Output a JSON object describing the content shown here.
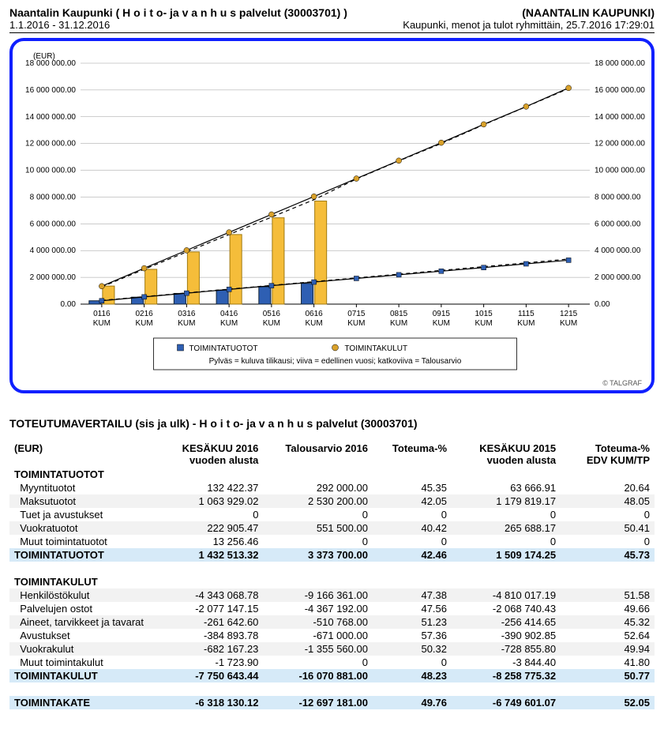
{
  "header": {
    "left": "Naantalin Kaupunki ( H o i t o- ja v a n h u s palvelut (30003701) )",
    "right": "(NAANTALIN KAUPUNKI)",
    "left2": "1.1.2016 - 31.12.2016",
    "right2": "Kaupunki, menot ja tulot ryhmittäin, 25.7.2016 17:29:01"
  },
  "chart": {
    "y_unit": "(EUR)",
    "ylim": [
      0,
      18000000
    ],
    "ytick_step": 2000000,
    "xlabels": [
      "0116",
      "0216",
      "0316",
      "0416",
      "0516",
      "0616",
      "0715",
      "0815",
      "0915",
      "1015",
      "1115",
      "1215"
    ],
    "xsub": "KUM",
    "bar_color_tuotot": "#2e5fb3",
    "bar_color_kulut": "#f5bd3a",
    "marker_tuotot": "#2e5fb3",
    "marker_kulut": "#d9a12a",
    "grid_color": "#808080",
    "border_color": "#1020ff",
    "tuotot_bars": [
      250000,
      520000,
      800000,
      1050000,
      1300000,
      1550000,
      0,
      0,
      0,
      0,
      0,
      0
    ],
    "kulut_bars": [
      1350000,
      2600000,
      3900000,
      5200000,
      6450000,
      7700000,
      0,
      0,
      0,
      0,
      0,
      0
    ],
    "tuotot_line_solid": [
      250000,
      540000,
      820000,
      1100000,
      1380000,
      1650000,
      1920000,
      2190000,
      2460000,
      2730000,
      3010000,
      3280000
    ],
    "kulut_line_solid": [
      1340000,
      2680000,
      4020000,
      5360000,
      6700000,
      8040000,
      9380000,
      10720000,
      12060000,
      13430000,
      14760000,
      16150000
    ],
    "tuotot_line_dash": [
      280000,
      560000,
      840000,
      1120000,
      1400000,
      1680000,
      1960000,
      2240000,
      2520000,
      2800000,
      3080000,
      3370000
    ],
    "kulut_line_dash": [
      1290000,
      2600000,
      3900000,
      5200000,
      6500000,
      7800000,
      9350000,
      10700000,
      12000000,
      13400000,
      14750000,
      16100000
    ],
    "legend": {
      "s1": "TOIMINTATUOTOT",
      "s2": "TOIMINTAKULUT",
      "note": "Pylväs = kuluva tilikausi; viiva = edellinen vuosi; katkoviiva = Talousarvio"
    },
    "copyright": "© TALGRAF"
  },
  "table": {
    "title": "TOTEUTUMAVERTAILU (sis ja ulk) - H o i t o- ja v a n h u s palvelut (30003701)",
    "unit": "(EUR)",
    "cols": {
      "c1a": "KESÄKUU 2016",
      "c1b": "vuoden alusta",
      "c2": "Talousarvio 2016",
      "c3": "Toteuma-%",
      "c4a": "KESÄKUU 2015",
      "c4b": "vuoden alusta",
      "c5a": "Toteuma-%",
      "c5b": "EDV KUM/TP"
    },
    "sec1": "TOIMINTATUOTOT",
    "r_myynti": {
      "l": "Myyntituotot",
      "a": "132 422.37",
      "b": "292 000.00",
      "c": "45.35",
      "d": "63 666.91",
      "e": "20.64"
    },
    "r_maksu": {
      "l": "Maksutuotot",
      "a": "1 063 929.02",
      "b": "2 530 200.00",
      "c": "42.05",
      "d": "1 179 819.17",
      "e": "48.05"
    },
    "r_tuet": {
      "l": "Tuet ja avustukset",
      "a": "0",
      "b": "0",
      "c": "0",
      "d": "0",
      "e": "0"
    },
    "r_vuokra_t": {
      "l": "Vuokratuotot",
      "a": "222 905.47",
      "b": "551 500.00",
      "c": "40.42",
      "d": "265 688.17",
      "e": "50.41"
    },
    "r_muut_t": {
      "l": "Muut toimintatuotot",
      "a": "13 256.46",
      "b": "0",
      "c": "0",
      "d": "0",
      "e": "0"
    },
    "tot_tuotot": {
      "l": "TOIMINTATUOTOT",
      "a": "1 432 513.32",
      "b": "3 373 700.00",
      "c": "42.46",
      "d": "1 509 174.25",
      "e": "45.73"
    },
    "sec2": "TOIMINTAKULUT",
    "r_henk": {
      "l": "Henkilöstökulut",
      "a": "-4 343 068.78",
      "b": "-9 166 361.00",
      "c": "47.38",
      "d": "-4 810 017.19",
      "e": "51.58"
    },
    "r_palv": {
      "l": "Palvelujen ostot",
      "a": "-2 077 147.15",
      "b": "-4 367 192.00",
      "c": "47.56",
      "d": "-2 068 740.43",
      "e": "49.66"
    },
    "r_aineet": {
      "l": "Aineet, tarvikkeet ja tavarat",
      "a": "-261 642.60",
      "b": "-510 768.00",
      "c": "51.23",
      "d": "-256 414.65",
      "e": "45.32"
    },
    "r_avust": {
      "l": "Avustukset",
      "a": "-384 893.78",
      "b": "-671 000.00",
      "c": "57.36",
      "d": "-390 902.85",
      "e": "52.64"
    },
    "r_vuokra_k": {
      "l": "Vuokrakulut",
      "a": "-682 167.23",
      "b": "-1 355 560.00",
      "c": "50.32",
      "d": "-728 855.80",
      "e": "49.94"
    },
    "r_muut_k": {
      "l": "Muut toimintakulut",
      "a": "-1 723.90",
      "b": "0",
      "c": "0",
      "d": "-3 844.40",
      "e": "41.80"
    },
    "tot_kulut": {
      "l": "TOIMINTAKULUT",
      "a": "-7 750 643.44",
      "b": "-16 070 881.00",
      "c": "48.23",
      "d": "-8 258 775.32",
      "e": "50.77"
    },
    "tot_kate": {
      "l": "TOIMINTAKATE",
      "a": "-6 318 130.12",
      "b": "-12 697 181.00",
      "c": "49.76",
      "d": "-6 749 601.07",
      "e": "52.05"
    }
  }
}
